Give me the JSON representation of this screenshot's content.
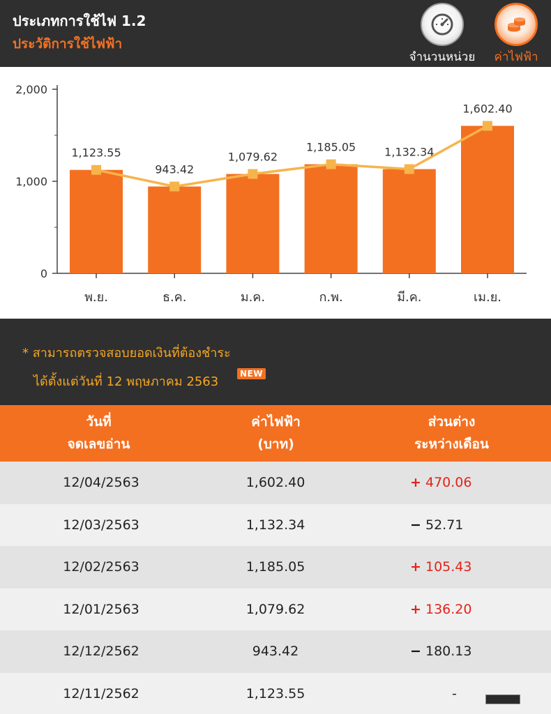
{
  "header": {
    "title": "ประเภทการใช้ไฟ 1.2",
    "subtitle": "ประวัติการใช้ไฟฟ้า",
    "units_button_label": "จำนวนหน่วย",
    "cost_button_label": "ค่าไฟฟ้า",
    "units_icon": "speedometer-icon",
    "cost_icon": "coins-icon"
  },
  "chart_data": {
    "type": "bar",
    "categories": [
      "พ.ย.",
      "ธ.ค.",
      "ม.ค.",
      "ก.พ.",
      "มี.ค.",
      "เม.ย."
    ],
    "values": [
      1123.55,
      943.42,
      1079.62,
      1185.05,
      1132.34,
      1602.4
    ],
    "value_labels": [
      "1,123.55",
      "943.42",
      "1,079.62",
      "1,185.05",
      "1,132.34",
      "1,602.40"
    ],
    "overlay": "line",
    "ylim": [
      0,
      2000
    ],
    "yticks": [
      "0",
      "1,000",
      "2,000"
    ],
    "yticks_values": [
      0,
      1000,
      2000
    ],
    "grid": false,
    "bar_color": "#f37021",
    "line_color": "#f6b44b"
  },
  "notice": {
    "line1": "* สามารถตรวจสอบยอดเงินที่ต้องชำระ",
    "line2": "ได้ตั้งแต่วันที่ 12 พฤษภาคม 2563",
    "badge": "NEW"
  },
  "table": {
    "headers": {
      "date_line1": "วันที่",
      "date_line2": "จดเลขอ่าน",
      "cost_line1": "ค่าไฟฟ้า",
      "cost_line2": "(บาท)",
      "diff_line1": "ส่วนต่าง",
      "diff_line2": "ระหว่างเดือน"
    },
    "rows": [
      {
        "date": "12/04/2563",
        "cost": "1,602.40",
        "sign": "+",
        "diff": "470.06",
        "dir": "up"
      },
      {
        "date": "12/03/2563",
        "cost": "1,132.34",
        "sign": "−",
        "diff": "52.71",
        "dir": "down"
      },
      {
        "date": "12/02/2563",
        "cost": "1,185.05",
        "sign": "+",
        "diff": "105.43",
        "dir": "up"
      },
      {
        "date": "12/01/2563",
        "cost": "1,079.62",
        "sign": "+",
        "diff": "136.20",
        "dir": "up"
      },
      {
        "date": "12/12/2562",
        "cost": "943.42",
        "sign": "−",
        "diff": "180.13",
        "dir": "down"
      },
      {
        "date": "12/11/2562",
        "cost": "1,123.55",
        "sign": "",
        "diff": "-",
        "dir": "none"
      }
    ]
  },
  "colors": {
    "accent": "#f37021",
    "dark_bg": "#2f2f2f",
    "notice_text": "#f6a623",
    "increase": "#e2231a"
  }
}
